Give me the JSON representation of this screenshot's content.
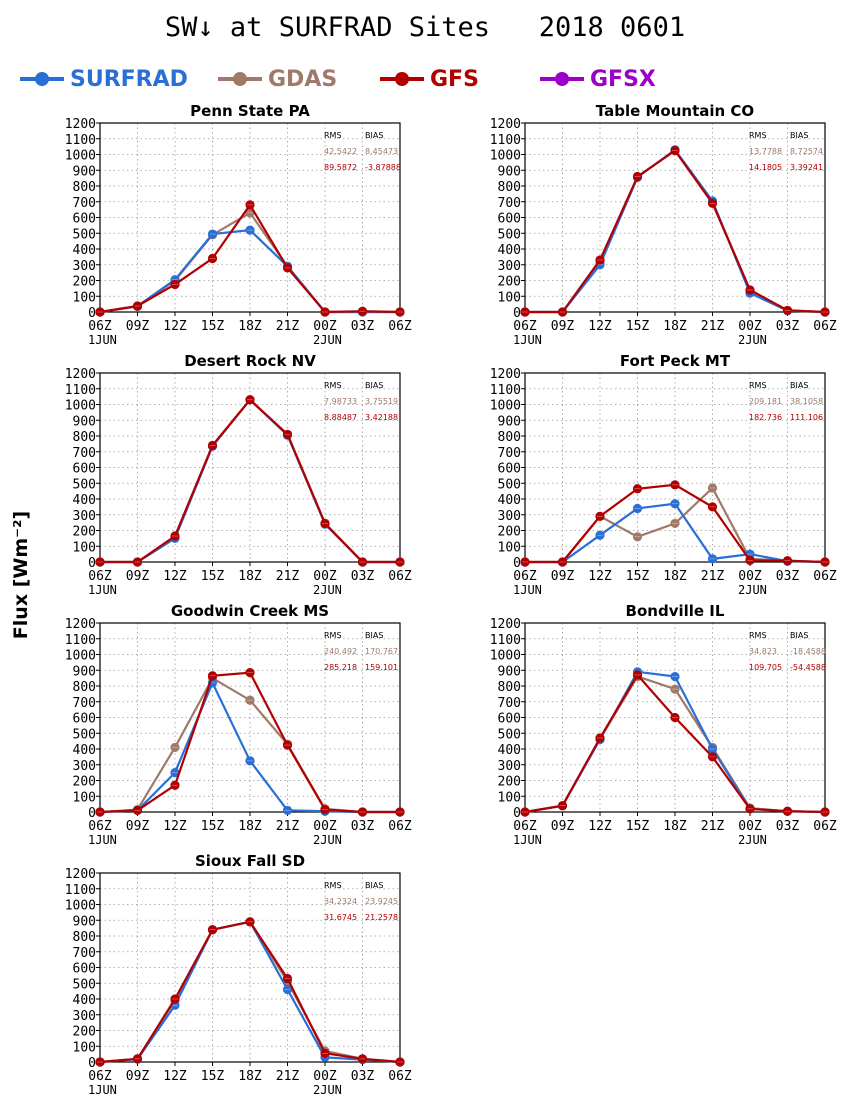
{
  "header": {
    "title": "SW↓ at SURFRAD Sites   2018 0601",
    "y_label": "Flux [Wm⁻²]"
  },
  "colors": {
    "SURFRAD": "#2a6fd6",
    "GDAS": "#a0796a",
    "GFS": "#b20000",
    "GFSX": "#9a00c8",
    "stats_header": "#000000"
  },
  "legend": [
    {
      "key": "SURFRAD",
      "label": "SURFRAD"
    },
    {
      "key": "GDAS",
      "label": "GDAS"
    },
    {
      "key": "GFS",
      "label": "GFS"
    },
    {
      "key": "GFSX",
      "label": "GFSX"
    }
  ],
  "chart_data": [
    {
      "type": "line",
      "title": "Penn State PA",
      "x": [
        "06Z",
        "09Z",
        "12Z",
        "15Z",
        "18Z",
        "21Z",
        "00Z",
        "03Z",
        "06Z"
      ],
      "x_sublabels": [
        "1JUN",
        "",
        "",
        "",
        "",
        "",
        "2JUN",
        "",
        ""
      ],
      "yticks": [
        0,
        100,
        200,
        300,
        400,
        500,
        600,
        700,
        800,
        900,
        1000,
        1100,
        1200
      ],
      "ylim": [
        0,
        1200
      ],
      "grid": true,
      "stats": {
        "headers": [
          "RMS",
          "BIAS"
        ],
        "rows": [
          {
            "series": "GDAS",
            "rms": "42.5422",
            "bias": "8.45473"
          },
          {
            "series": "GFS",
            "rms": "89.5872",
            "bias": "-3.87888"
          }
        ]
      },
      "series": [
        {
          "name": "GDAS",
          "values": [
            0,
            35,
            200,
            490,
            630,
            290,
            0,
            0,
            0
          ]
        },
        {
          "name": "SURFRAD",
          "values": [
            0,
            38,
            205,
            495,
            520,
            290,
            0,
            0,
            0
          ]
        },
        {
          "name": "GFS",
          "values": [
            0,
            38,
            175,
            340,
            680,
            280,
            0,
            5,
            0
          ]
        }
      ]
    },
    {
      "type": "line",
      "title": "Table Mountain CO",
      "x": [
        "06Z",
        "09Z",
        "12Z",
        "15Z",
        "18Z",
        "21Z",
        "00Z",
        "03Z",
        "06Z"
      ],
      "x_sublabels": [
        "1JUN",
        "",
        "",
        "",
        "",
        "",
        "2JUN",
        "",
        ""
      ],
      "yticks": [
        0,
        100,
        200,
        300,
        400,
        500,
        600,
        700,
        800,
        900,
        1000,
        1100,
        1200
      ],
      "ylim": [
        0,
        1200
      ],
      "grid": true,
      "stats": {
        "headers": [
          "RMS",
          "BIAS"
        ],
        "rows": [
          {
            "series": "GDAS",
            "rms": "13.7788",
            "bias": "8.72574"
          },
          {
            "series": "GFS",
            "rms": "14.1805",
            "bias": "3.39241"
          }
        ]
      },
      "series": [
        {
          "name": "GDAS",
          "values": [
            0,
            0,
            320,
            860,
            1025,
            700,
            135,
            10,
            0
          ]
        },
        {
          "name": "SURFRAD",
          "values": [
            0,
            0,
            300,
            855,
            1030,
            705,
            120,
            8,
            0
          ]
        },
        {
          "name": "GFS",
          "values": [
            0,
            0,
            330,
            860,
            1025,
            690,
            140,
            10,
            0
          ]
        }
      ]
    },
    {
      "type": "line",
      "title": "Desert Rock NV",
      "x": [
        "06Z",
        "09Z",
        "12Z",
        "15Z",
        "18Z",
        "21Z",
        "00Z",
        "03Z",
        "06Z"
      ],
      "x_sublabels": [
        "1JUN",
        "",
        "",
        "",
        "",
        "",
        "2JUN",
        "",
        ""
      ],
      "yticks": [
        0,
        100,
        200,
        300,
        400,
        500,
        600,
        700,
        800,
        900,
        1000,
        1100,
        1200
      ],
      "ylim": [
        0,
        1200
      ],
      "grid": true,
      "stats": {
        "headers": [
          "RMS",
          "BIAS"
        ],
        "rows": [
          {
            "series": "GDAS",
            "rms": "7.98733",
            "bias": "3.75519"
          },
          {
            "series": "GFS",
            "rms": "8.88487",
            "bias": "3.42188"
          }
        ]
      },
      "series": [
        {
          "name": "GDAS",
          "values": [
            0,
            0,
            160,
            740,
            1030,
            810,
            245,
            0,
            0
          ]
        },
        {
          "name": "SURFRAD",
          "values": [
            0,
            0,
            150,
            735,
            1030,
            805,
            240,
            0,
            0
          ]
        },
        {
          "name": "GFS",
          "values": [
            0,
            0,
            165,
            740,
            1030,
            810,
            245,
            0,
            0
          ]
        }
      ]
    },
    {
      "type": "line",
      "title": "Fort Peck MT",
      "x": [
        "06Z",
        "09Z",
        "12Z",
        "15Z",
        "18Z",
        "21Z",
        "00Z",
        "03Z",
        "06Z"
      ],
      "x_sublabels": [
        "1JUN",
        "",
        "",
        "",
        "",
        "",
        "2JUN",
        "",
        ""
      ],
      "yticks": [
        0,
        100,
        200,
        300,
        400,
        500,
        600,
        700,
        800,
        900,
        1000,
        1100,
        1200
      ],
      "ylim": [
        0,
        1200
      ],
      "grid": true,
      "stats": {
        "headers": [
          "RMS",
          "BIAS"
        ],
        "rows": [
          {
            "series": "GDAS",
            "rms": "209.181",
            "bias": "38.1058"
          },
          {
            "series": "GFS",
            "rms": "182.736",
            "bias": "111.106"
          }
        ]
      },
      "series": [
        {
          "name": "GDAS",
          "values": [
            0,
            0,
            290,
            160,
            245,
            470,
            20,
            8,
            0
          ]
        },
        {
          "name": "SURFRAD",
          "values": [
            0,
            0,
            170,
            340,
            370,
            20,
            50,
            5,
            0
          ]
        },
        {
          "name": "GFS",
          "values": [
            0,
            0,
            290,
            465,
            490,
            350,
            10,
            8,
            0
          ]
        }
      ]
    },
    {
      "type": "line",
      "title": "Goodwin Creek MS",
      "x": [
        "06Z",
        "09Z",
        "12Z",
        "15Z",
        "18Z",
        "21Z",
        "00Z",
        "03Z",
        "06Z"
      ],
      "x_sublabels": [
        "1JUN",
        "",
        "",
        "",
        "",
        "",
        "2JUN",
        "",
        ""
      ],
      "yticks": [
        0,
        100,
        200,
        300,
        400,
        500,
        600,
        700,
        800,
        900,
        1000,
        1100,
        1200
      ],
      "ylim": [
        0,
        1200
      ],
      "grid": true,
      "stats": {
        "headers": [
          "RMS",
          "BIAS"
        ],
        "rows": [
          {
            "series": "GDAS",
            "rms": "240.492",
            "bias": "170.767"
          },
          {
            "series": "GFS",
            "rms": "285.218",
            "bias": "159.101"
          }
        ]
      },
      "series": [
        {
          "name": "GDAS",
          "values": [
            0,
            15,
            410,
            850,
            710,
            430,
            20,
            0,
            0
          ]
        },
        {
          "name": "SURFRAD",
          "values": [
            0,
            10,
            250,
            820,
            325,
            10,
            5,
            0,
            0
          ]
        },
        {
          "name": "GFS",
          "values": [
            0,
            10,
            170,
            865,
            885,
            425,
            15,
            0,
            0
          ]
        }
      ]
    },
    {
      "type": "line",
      "title": "Bondville IL",
      "x": [
        "06Z",
        "09Z",
        "12Z",
        "15Z",
        "18Z",
        "21Z",
        "00Z",
        "03Z",
        "06Z"
      ],
      "x_sublabels": [
        "1JUN",
        "",
        "",
        "",
        "",
        "",
        "2JUN",
        "",
        ""
      ],
      "yticks": [
        0,
        100,
        200,
        300,
        400,
        500,
        600,
        700,
        800,
        900,
        1000,
        1100,
        1200
      ],
      "ylim": [
        0,
        1200
      ],
      "grid": true,
      "stats": {
        "headers": [
          "RMS",
          "BIAS"
        ],
        "rows": [
          {
            "series": "GDAS",
            "rms": "34.823",
            "bias": "-18.4588"
          },
          {
            "series": "GFS",
            "rms": "109.705",
            "bias": "-54.4588"
          }
        ]
      },
      "series": [
        {
          "name": "GDAS",
          "values": [
            0,
            40,
            465,
            860,
            780,
            410,
            25,
            5,
            0
          ]
        },
        {
          "name": "SURFRAD",
          "values": [
            0,
            40,
            460,
            890,
            860,
            400,
            20,
            5,
            0
          ]
        },
        {
          "name": "GFS",
          "values": [
            0,
            40,
            470,
            870,
            600,
            350,
            20,
            5,
            0
          ]
        }
      ]
    },
    {
      "type": "line",
      "title": "Sioux Fall SD",
      "x": [
        "06Z",
        "09Z",
        "12Z",
        "15Z",
        "18Z",
        "21Z",
        "00Z",
        "03Z",
        "06Z"
      ],
      "x_sublabels": [
        "1JUN",
        "",
        "",
        "",
        "",
        "",
        "2JUN",
        "",
        ""
      ],
      "yticks": [
        0,
        100,
        200,
        300,
        400,
        500,
        600,
        700,
        800,
        900,
        1000,
        1100,
        1200
      ],
      "ylim": [
        0,
        1200
      ],
      "grid": true,
      "stats": {
        "headers": [
          "RMS",
          "BIAS"
        ],
        "rows": [
          {
            "series": "GDAS",
            "rms": "34.2324",
            "bias": "23.9245"
          },
          {
            "series": "GFS",
            "rms": "31.6745",
            "bias": "21.2578"
          }
        ]
      },
      "series": [
        {
          "name": "GDAS",
          "values": [
            0,
            20,
            390,
            840,
            890,
            510,
            70,
            20,
            0
          ]
        },
        {
          "name": "SURFRAD",
          "values": [
            0,
            18,
            360,
            840,
            890,
            460,
            30,
            15,
            0
          ]
        },
        {
          "name": "GFS",
          "values": [
            0,
            20,
            400,
            840,
            890,
            530,
            55,
            20,
            0
          ]
        }
      ]
    }
  ]
}
